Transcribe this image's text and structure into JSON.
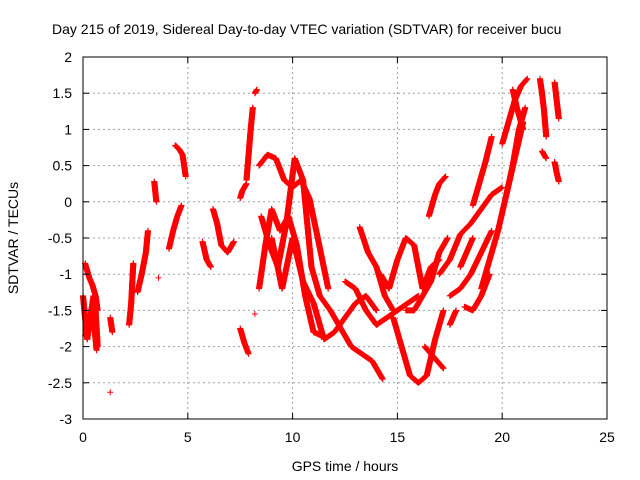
{
  "chart_data": {
    "type": "scatter",
    "title": "Day 215 of 2019, Sidereal Day-to-day VTEC variation (SDTVAR) for receiver bucu",
    "xlabel": "GPS time / hours",
    "ylabel": "SDTVAR / TECUs",
    "xlim": [
      0,
      25
    ],
    "ylim": [
      -3,
      2
    ],
    "xticks": [
      0,
      5,
      10,
      15,
      20,
      25
    ],
    "yticks": [
      -3,
      -2.5,
      -2,
      -1.5,
      -1,
      -0.5,
      0,
      0.5,
      1,
      1.5,
      2
    ],
    "xtick_labels": [
      "0",
      "5",
      "10",
      "15",
      "20",
      "25"
    ],
    "ytick_labels": [
      "-3",
      "-2.5",
      "-2",
      "-1.5",
      "-1",
      "-0.5",
      "0",
      "0.5",
      "1",
      "1.5",
      "2"
    ],
    "grid": true,
    "marker": "+",
    "color": "#ff0000",
    "series": [
      {
        "name": "s1",
        "x": [
          0.0,
          0.1,
          0.2,
          0.3,
          0.4,
          0.5,
          0.6,
          0.7
        ],
        "y": [
          -1.3,
          -1.6,
          -1.9,
          -1.7,
          -1.5,
          -1.3,
          -1.5,
          -2.0
        ]
      },
      {
        "name": "s2",
        "x": [
          0.1,
          0.2,
          0.3,
          0.45,
          0.6,
          0.7
        ],
        "y": [
          -0.85,
          -0.95,
          -1.05,
          -1.15,
          -1.3,
          -1.5
        ]
      },
      {
        "name": "s3",
        "x": [
          0.1,
          0.25,
          0.4,
          0.55,
          0.65
        ],
        "y": [
          -1.85,
          -1.75,
          -1.65,
          -1.75,
          -2.05
        ]
      },
      {
        "name": "s4",
        "x": [
          1.3
        ],
        "y": [
          -2.63
        ]
      },
      {
        "name": "s5",
        "x": [
          1.3,
          1.4
        ],
        "y": [
          -1.6,
          -1.8
        ]
      },
      {
        "name": "s6",
        "x": [
          2.2,
          2.3,
          2.4
        ],
        "y": [
          -1.7,
          -1.4,
          -0.85
        ]
      },
      {
        "name": "s7",
        "x": [
          2.6,
          2.8,
          3.0,
          3.1
        ],
        "y": [
          -1.25,
          -1.0,
          -0.7,
          -0.4
        ]
      },
      {
        "name": "s8",
        "x": [
          3.4,
          3.5
        ],
        "y": [
          0.28,
          0.0
        ]
      },
      {
        "name": "s9",
        "x": [
          3.6
        ],
        "y": [
          -1.05
        ]
      },
      {
        "name": "s10",
        "x": [
          4.1,
          4.3,
          4.5,
          4.7
        ],
        "y": [
          -0.65,
          -0.4,
          -0.2,
          -0.05
        ]
      },
      {
        "name": "s11",
        "x": [
          4.4,
          4.6,
          4.75,
          4.9
        ],
        "y": [
          0.78,
          0.72,
          0.65,
          0.35
        ]
      },
      {
        "name": "s12",
        "x": [
          5.7,
          5.9,
          6.1
        ],
        "y": [
          -0.55,
          -0.8,
          -0.9
        ]
      },
      {
        "name": "s13",
        "x": [
          6.2,
          6.4,
          6.6,
          6.9,
          7.2
        ],
        "y": [
          -0.1,
          -0.3,
          -0.6,
          -0.7,
          -0.55
        ]
      },
      {
        "name": "s14",
        "x": [
          7.5,
          7.6,
          7.8
        ],
        "y": [
          0.05,
          0.15,
          0.25
        ]
      },
      {
        "name": "s15",
        "x": [
          7.5,
          7.7,
          7.9
        ],
        "y": [
          -1.75,
          -1.95,
          -2.1
        ]
      },
      {
        "name": "s16",
        "x": [
          7.8,
          7.9,
          8.0,
          8.1
        ],
        "y": [
          0.3,
          0.65,
          1.0,
          1.3
        ]
      },
      {
        "name": "s17",
        "x": [
          8.2,
          8.3
        ],
        "y": [
          1.5,
          1.55
        ]
      },
      {
        "name": "s18",
        "x": [
          8.2
        ],
        "y": [
          -1.55
        ]
      },
      {
        "name": "s19",
        "x": [
          8.4,
          8.7,
          9.0,
          9.4,
          9.8,
          10.2,
          10.6,
          11.0,
          11.4
        ],
        "y": [
          -1.2,
          -0.6,
          -0.1,
          -0.4,
          -0.2,
          -0.6,
          -1.3,
          -1.8,
          -1.85
        ]
      },
      {
        "name": "s20",
        "x": [
          8.4,
          8.8,
          9.2,
          9.6,
          10.0,
          10.4,
          10.8,
          11.2,
          11.7
        ],
        "y": [
          0.5,
          0.65,
          0.6,
          0.3,
          0.2,
          0.3,
          0.05,
          -0.5,
          -1.2
        ]
      },
      {
        "name": "s21",
        "x": [
          8.5,
          8.9,
          9.3,
          9.7,
          10.1,
          10.5,
          10.9,
          11.3,
          11.8,
          12.3,
          12.8,
          13.3,
          13.8,
          14.3
        ],
        "y": [
          -0.2,
          -0.6,
          -0.9,
          -0.3,
          0.6,
          0.3,
          -0.9,
          -1.3,
          -1.5,
          -1.75,
          -2.0,
          -2.1,
          -2.2,
          -2.45
        ]
      },
      {
        "name": "s22",
        "x": [
          9.0,
          9.5,
          10.0,
          10.5,
          11.0,
          11.5,
          12.0,
          12.5,
          13.0,
          13.5,
          14.0
        ],
        "y": [
          -0.5,
          -1.2,
          -0.5,
          -1.1,
          -1.4,
          -1.9,
          -1.8,
          -1.6,
          -1.4,
          -1.3,
          -1.5
        ]
      },
      {
        "name": "s23",
        "x": [
          12.5,
          13.0,
          13.5,
          14.0,
          14.5,
          15.0,
          15.5,
          16.0
        ],
        "y": [
          -1.1,
          -1.2,
          -1.5,
          -1.7,
          -1.6,
          -1.5,
          -1.4,
          -1.3
        ]
      },
      {
        "name": "s24",
        "x": [
          13.2,
          13.6,
          14.0,
          14.4,
          14.8
        ],
        "y": [
          -0.35,
          -0.7,
          -0.9,
          -1.3,
          -1.5
        ]
      },
      {
        "name": "s25",
        "x": [
          14.2,
          14.6,
          15.0,
          15.4,
          15.8,
          16.2,
          16.6,
          17.0
        ],
        "y": [
          -1.0,
          -1.2,
          -0.8,
          -0.5,
          -0.6,
          -1.2,
          -0.9,
          -0.8
        ]
      },
      {
        "name": "s26",
        "x": [
          14.8,
          15.2,
          15.6,
          16.0,
          16.4,
          16.8,
          17.2
        ],
        "y": [
          -1.6,
          -2.0,
          -2.4,
          -2.5,
          -2.4,
          -1.9,
          -1.5
        ]
      },
      {
        "name": "s27",
        "x": [
          15.4,
          15.8,
          16.2,
          16.6,
          17.0,
          17.4
        ],
        "y": [
          -1.5,
          -1.5,
          -1.3,
          -1.1,
          -0.7,
          -0.5
        ]
      },
      {
        "name": "s28",
        "x": [
          16.3,
          16.6,
          16.9,
          17.2
        ],
        "y": [
          -2.0,
          -2.1,
          -2.2,
          -2.3
        ]
      },
      {
        "name": "s29",
        "x": [
          16.5,
          16.8,
          17.0,
          17.3
        ],
        "y": [
          -0.2,
          0.1,
          0.25,
          0.35
        ]
      },
      {
        "name": "s30",
        "x": [
          17.0,
          17.5,
          18.0,
          18.5,
          19.0,
          19.5,
          20.0
        ],
        "y": [
          -1.0,
          -0.8,
          -0.45,
          -0.3,
          -0.1,
          0.1,
          0.2
        ]
      },
      {
        "name": "s31",
        "x": [
          17.5,
          18.0,
          18.5,
          19.0,
          19.5
        ],
        "y": [
          -1.3,
          -1.2,
          -1.0,
          -0.7,
          -0.4
        ]
      },
      {
        "name": "s32",
        "x": [
          17.5,
          17.8
        ],
        "y": [
          -1.7,
          -1.5
        ]
      },
      {
        "name": "s33",
        "x": [
          18.0,
          18.3,
          18.6
        ],
        "y": [
          -0.9,
          -0.7,
          -0.5
        ]
      },
      {
        "name": "s34",
        "x": [
          18.2,
          18.6,
          19.0,
          19.4
        ],
        "y": [
          -1.45,
          -1.5,
          -1.3,
          -1.0
        ]
      },
      {
        "name": "s35",
        "x": [
          18.6,
          18.9,
          19.2,
          19.5
        ],
        "y": [
          -0.05,
          0.25,
          0.55,
          0.9
        ]
      },
      {
        "name": "s36",
        "x": [
          19.0,
          19.4,
          19.8,
          20.2,
          20.6,
          21.0
        ],
        "y": [
          -1.2,
          -0.8,
          -0.4,
          0.1,
          0.6,
          1.1
        ]
      },
      {
        "name": "s37",
        "x": [
          20.0,
          20.3,
          20.6,
          20.9,
          21.2
        ],
        "y": [
          0.8,
          1.1,
          1.4,
          1.6,
          1.7
        ]
      },
      {
        "name": "s38",
        "x": [
          20.2,
          20.5,
          20.8,
          21.1
        ],
        "y": [
          0.1,
          0.5,
          1.0,
          1.3
        ]
      },
      {
        "name": "s39",
        "x": [
          20.5,
          20.7,
          21.0
        ],
        "y": [
          1.55,
          1.3,
          1.0
        ]
      },
      {
        "name": "s40",
        "x": [
          21.8,
          21.9,
          22.0,
          22.1
        ],
        "y": [
          1.7,
          1.5,
          1.25,
          0.9
        ]
      },
      {
        "name": "s41",
        "x": [
          21.9,
          22.1
        ],
        "y": [
          0.7,
          0.6
        ]
      },
      {
        "name": "s42",
        "x": [
          22.5,
          22.6,
          22.7
        ],
        "y": [
          1.65,
          1.4,
          1.15
        ]
      },
      {
        "name": "s43",
        "x": [
          22.5,
          22.6,
          22.7
        ],
        "y": [
          0.55,
          0.4,
          0.28
        ]
      }
    ]
  }
}
